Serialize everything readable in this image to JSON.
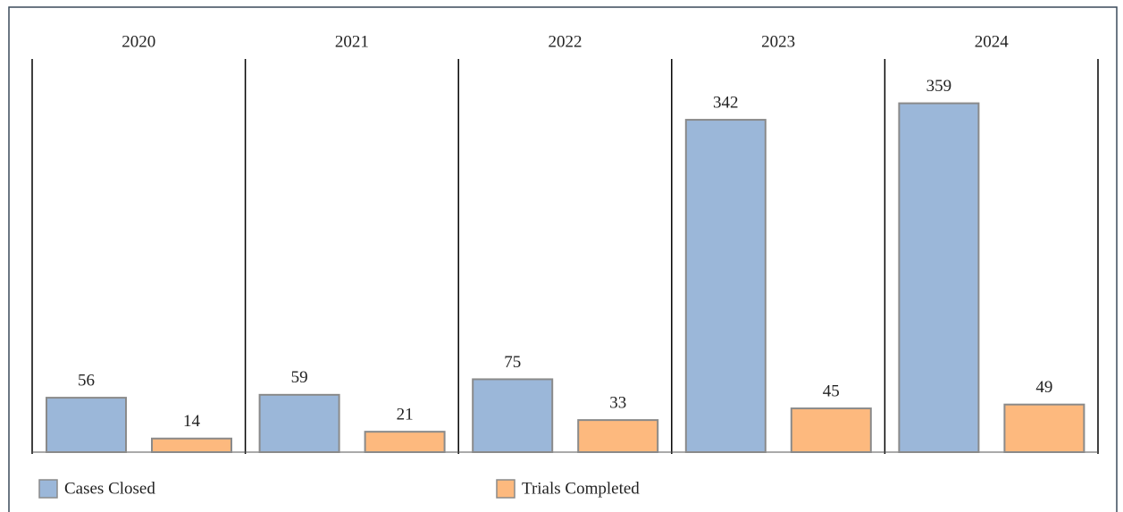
{
  "chart_data": {
    "type": "bar",
    "categories": [
      "2020",
      "2021",
      "2022",
      "2023",
      "2024"
    ],
    "series": [
      {
        "name": "Cases Closed",
        "color": "#9bb7d9",
        "values": [
          56,
          59,
          75,
          342,
          359
        ]
      },
      {
        "name": "Trials Completed",
        "color": "#fdb97e",
        "values": [
          14,
          21,
          33,
          45,
          49
        ]
      }
    ],
    "ylim": [
      0,
      400
    ],
    "legend": "bottom"
  }
}
